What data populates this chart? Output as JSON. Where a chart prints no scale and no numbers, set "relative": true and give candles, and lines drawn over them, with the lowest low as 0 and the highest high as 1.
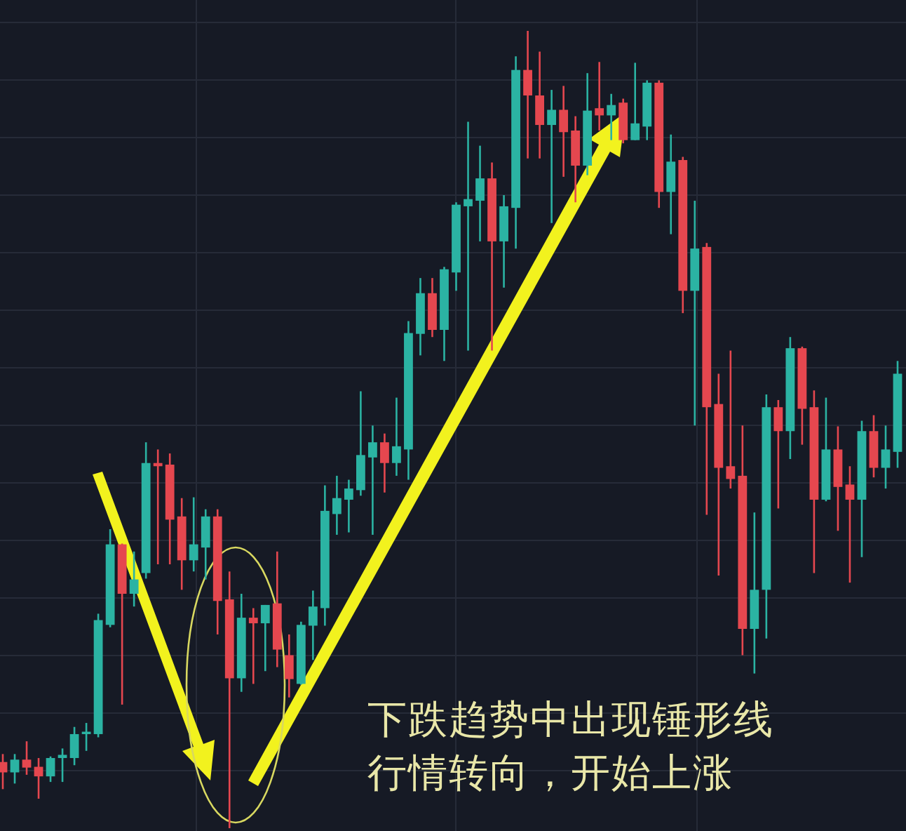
{
  "chart_data": {
    "type": "candlestick",
    "relative": true,
    "grid": true,
    "categories": [
      null,
      null,
      null,
      null,
      null,
      null,
      null,
      null,
      null,
      null,
      null,
      null,
      null,
      null,
      null,
      null,
      null,
      null,
      null,
      null,
      null,
      null,
      null,
      null,
      null,
      null,
      null,
      null,
      null,
      null,
      null,
      null,
      null,
      null,
      null,
      null,
      null,
      null,
      null,
      null,
      null,
      null,
      null,
      null,
      null,
      null,
      null,
      null,
      null,
      null,
      null,
      null,
      null,
      null,
      null,
      null,
      null,
      null,
      null,
      null,
      null,
      null,
      null,
      null,
      null,
      null,
      null,
      null,
      null,
      null,
      null,
      null,
      null,
      null,
      null,
      null
    ],
    "ohlc": [
      [
        0.083,
        0.093,
        0.049,
        0.07
      ],
      [
        0.07,
        0.093,
        0.056,
        0.086
      ],
      [
        0.086,
        0.109,
        0.067,
        0.076
      ],
      [
        0.077,
        0.088,
        0.037,
        0.065
      ],
      [
        0.065,
        0.09,
        0.058,
        0.088
      ],
      [
        0.088,
        0.1,
        0.058,
        0.092
      ],
      [
        0.088,
        0.127,
        0.079,
        0.118
      ],
      [
        0.118,
        0.132,
        0.097,
        0.121
      ],
      [
        0.118,
        0.269,
        0.114,
        0.261
      ],
      [
        0.255,
        0.375,
        0.252,
        0.356
      ],
      [
        0.356,
        0.357,
        0.155,
        0.294
      ],
      [
        0.294,
        0.347,
        0.278,
        0.312
      ],
      [
        0.32,
        0.484,
        0.313,
        0.458
      ],
      [
        0.458,
        0.475,
        0.331,
        0.454
      ],
      [
        0.456,
        0.47,
        0.331,
        0.387
      ],
      [
        0.391,
        0.414,
        0.299,
        0.336
      ],
      [
        0.336,
        0.415,
        0.322,
        0.356
      ],
      [
        0.352,
        0.4,
        0.312,
        0.391
      ],
      [
        0.391,
        0.4,
        0.243,
        0.285
      ],
      [
        0.287,
        0.322,
        0,
        0.188
      ],
      [
        0.188,
        0.294,
        0.171,
        0.264
      ],
      [
        0.264,
        0.276,
        0.181,
        0.257
      ],
      [
        0.257,
        0.28,
        0.197,
        0.28
      ],
      [
        0.282,
        0.347,
        0.202,
        0.224
      ],
      [
        0.217,
        0.243,
        0.164,
        0.187
      ],
      [
        0.181,
        0.259,
        0.18,
        0.255
      ],
      [
        0.254,
        0.298,
        0.211,
        0.278
      ],
      [
        0.276,
        0.43,
        0.254,
        0.398
      ],
      [
        0.394,
        0.442,
        0.368,
        0.414
      ],
      [
        0.412,
        0.437,
        0.371,
        0.426
      ],
      [
        0.424,
        0.548,
        0.417,
        0.468
      ],
      [
        0.465,
        0.505,
        0.368,
        0.484
      ],
      [
        0.484,
        0.495,
        0.421,
        0.458
      ],
      [
        0.458,
        0.54,
        0.442,
        0.479
      ],
      [
        0.475,
        0.636,
        0.437,
        0.621
      ],
      [
        0.62,
        0.69,
        0.593,
        0.671
      ],
      [
        0.671,
        0.69,
        0.616,
        0.625
      ],
      [
        0.625,
        0.704,
        0.586,
        0.701
      ],
      [
        0.697,
        0.785,
        0.674,
        0.782
      ],
      [
        0.78,
        0.886,
        0.599,
        0.789
      ],
      [
        0.787,
        0.856,
        0.736,
        0.815
      ],
      [
        0.815,
        0.835,
        0.599,
        0.736
      ],
      [
        0.736,
        0.794,
        0.678,
        0.78
      ],
      [
        0.778,
        0.968,
        0.727,
        0.951
      ],
      [
        0.951,
        1,
        0.84,
        0.919
      ],
      [
        0.919,
        0.974,
        0.84,
        0.882
      ],
      [
        0.882,
        0.926,
        0.759,
        0.901
      ],
      [
        0.901,
        0.931,
        0.817,
        0.873
      ],
      [
        0.875,
        0.893,
        0.785,
        0.831
      ],
      [
        0.831,
        0.947,
        0.819,
        0.9
      ],
      [
        0.903,
        0.961,
        0.875,
        0.894
      ],
      [
        0.894,
        0.921,
        0.863,
        0.907
      ],
      [
        0.91,
        0.915,
        0.859,
        0.863
      ],
      [
        0.863,
        0.96,
        0.863,
        0.884
      ],
      [
        0.88,
        0.938,
        0.863,
        0.935
      ],
      [
        0.935,
        0.938,
        0.778,
        0.798
      ],
      [
        0.798,
        0.87,
        0.745,
        0.836
      ],
      [
        0.838,
        0.842,
        0.646,
        0.674
      ],
      [
        0.674,
        0.787,
        0.505,
        0.727
      ],
      [
        0.729,
        0.734,
        0.393,
        0.528
      ],
      [
        0.532,
        0.57,
        0.317,
        0.452
      ],
      [
        0.454,
        0.599,
        0.426,
        0.438
      ],
      [
        0.442,
        0.505,
        0.217,
        0.25
      ],
      [
        0.25,
        0.396,
        0.194,
        0.299
      ],
      [
        0.299,
        0.544,
        0.238,
        0.528
      ],
      [
        0.528,
        0.537,
        0.401,
        0.498
      ],
      [
        0.498,
        0.616,
        0.463,
        0.602
      ],
      [
        0.602,
        0.604,
        0.481,
        0.526
      ],
      [
        0.528,
        0.549,
        0.32,
        0.412
      ],
      [
        0.412,
        0.54,
        0.41,
        0.475
      ],
      [
        0.475,
        0.504,
        0.373,
        0.428
      ],
      [
        0.431,
        0.454,
        0.308,
        0.412
      ],
      [
        0.412,
        0.511,
        0.34,
        0.498
      ],
      [
        0.498,
        0.518,
        0.44,
        0.452
      ],
      [
        0.452,
        0.505,
        0.426,
        0.475
      ],
      [
        0.472,
        0.586,
        0.452,
        0.57
      ]
    ],
    "colors": [
      "#e5474f",
      "#2bb3a3",
      "#e5474f",
      "#e5474f",
      "#2bb3a3",
      "#2bb3a3",
      "#2bb3a3",
      "#2bb3a3",
      "#2bb3a3",
      "#2bb3a3",
      "#e5474f",
      "#2bb3a3",
      "#2bb3a3",
      "#e5474f",
      "#e5474f",
      "#e5474f",
      "#2bb3a3",
      "#2bb3a3",
      "#e5474f",
      "#e5474f",
      "#2bb3a3",
      "#e5474f",
      "#2bb3a3",
      "#e5474f",
      "#e5474f",
      "#2bb3a3",
      "#2bb3a3",
      "#2bb3a3",
      "#2bb3a3",
      "#2bb3a3",
      "#2bb3a3",
      "#2bb3a3",
      "#e5474f",
      "#2bb3a3",
      "#2bb3a3",
      "#2bb3a3",
      "#e5474f",
      "#2bb3a3",
      "#2bb3a3",
      "#2bb3a3",
      "#2bb3a3",
      "#e5474f",
      "#2bb3a3",
      "#2bb3a3",
      "#e5474f",
      "#e5474f",
      "#2bb3a3",
      "#e5474f",
      "#e5474f",
      "#2bb3a3",
      "#e5474f",
      "#2bb3a3",
      "#e5474f",
      "#2bb3a3",
      "#2bb3a3",
      "#e5474f",
      "#2bb3a3",
      "#e5474f",
      "#2bb3a3",
      "#e5474f",
      "#e5474f",
      "#e5474f",
      "#e5474f",
      "#2bb3a3",
      "#2bb3a3",
      "#e5474f",
      "#2bb3a3",
      "#e5474f",
      "#e5474f",
      "#2bb3a3",
      "#e5474f",
      "#e5474f",
      "#2bb3a3",
      "#e5474f",
      "#2bb3a3",
      "#2bb3a3"
    ],
    "annotations": [
      "下跌趋势中出现锤形线",
      "行情转向，开始上涨"
    ]
  }
}
